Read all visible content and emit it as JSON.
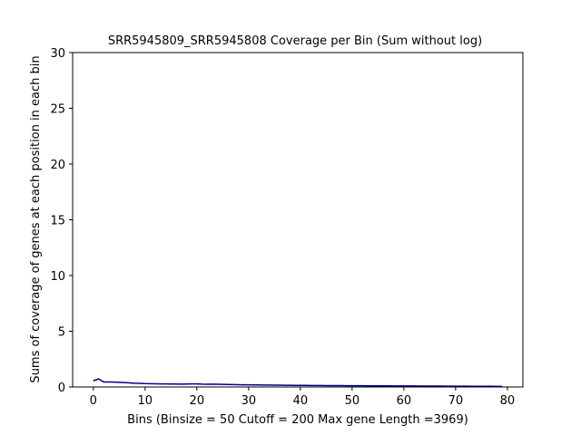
{
  "chart_data": {
    "type": "line",
    "title": "SRR5945809_SRR5945808 Coverage per Bin (Sum without log)",
    "xlabel": "Bins  (Binsize = 50 Cutoff = 200 Max gene Length =3969)",
    "ylabel": "Sums of coverage of genes at each position in each bin",
    "xlim": [
      -4,
      83
    ],
    "ylim": [
      0,
      30
    ],
    "xticks": [
      0,
      10,
      20,
      30,
      40,
      50,
      60,
      70,
      80
    ],
    "yticks": [
      0,
      5,
      10,
      15,
      20,
      25,
      30
    ],
    "grid": false,
    "line_color": "#00008b",
    "x": [
      0,
      1,
      2,
      3,
      4,
      5,
      6,
      7,
      8,
      9,
      10,
      11,
      12,
      13,
      14,
      15,
      16,
      17,
      18,
      19,
      20,
      21,
      22,
      23,
      24,
      25,
      26,
      27,
      28,
      29,
      30,
      31,
      32,
      33,
      34,
      35,
      36,
      37,
      38,
      39,
      40,
      41,
      42,
      43,
      44,
      45,
      46,
      47,
      48,
      49,
      50,
      51,
      52,
      53,
      54,
      55,
      56,
      57,
      58,
      59,
      60,
      61,
      62,
      63,
      64,
      65,
      66,
      67,
      68,
      69,
      70,
      71,
      72,
      73,
      74,
      75,
      76,
      77,
      78,
      79
    ],
    "y": [
      0.55,
      0.72,
      0.45,
      0.45,
      0.44,
      0.42,
      0.4,
      0.37,
      0.34,
      0.32,
      0.3,
      0.29,
      0.28,
      0.27,
      0.27,
      0.26,
      0.26,
      0.25,
      0.26,
      0.27,
      0.27,
      0.25,
      0.24,
      0.25,
      0.24,
      0.23,
      0.22,
      0.21,
      0.2,
      0.19,
      0.19,
      0.18,
      0.18,
      0.17,
      0.17,
      0.16,
      0.16,
      0.15,
      0.15,
      0.14,
      0.14,
      0.14,
      0.13,
      0.13,
      0.13,
      0.12,
      0.12,
      0.12,
      0.12,
      0.11,
      0.11,
      0.11,
      0.11,
      0.1,
      0.1,
      0.1,
      0.1,
      0.1,
      0.09,
      0.09,
      0.09,
      0.09,
      0.09,
      0.08,
      0.08,
      0.08,
      0.08,
      0.08,
      0.07,
      0.07,
      0.07,
      0.07,
      0.07,
      0.06,
      0.06,
      0.06,
      0.06,
      0.06,
      0.05,
      0.05
    ]
  }
}
